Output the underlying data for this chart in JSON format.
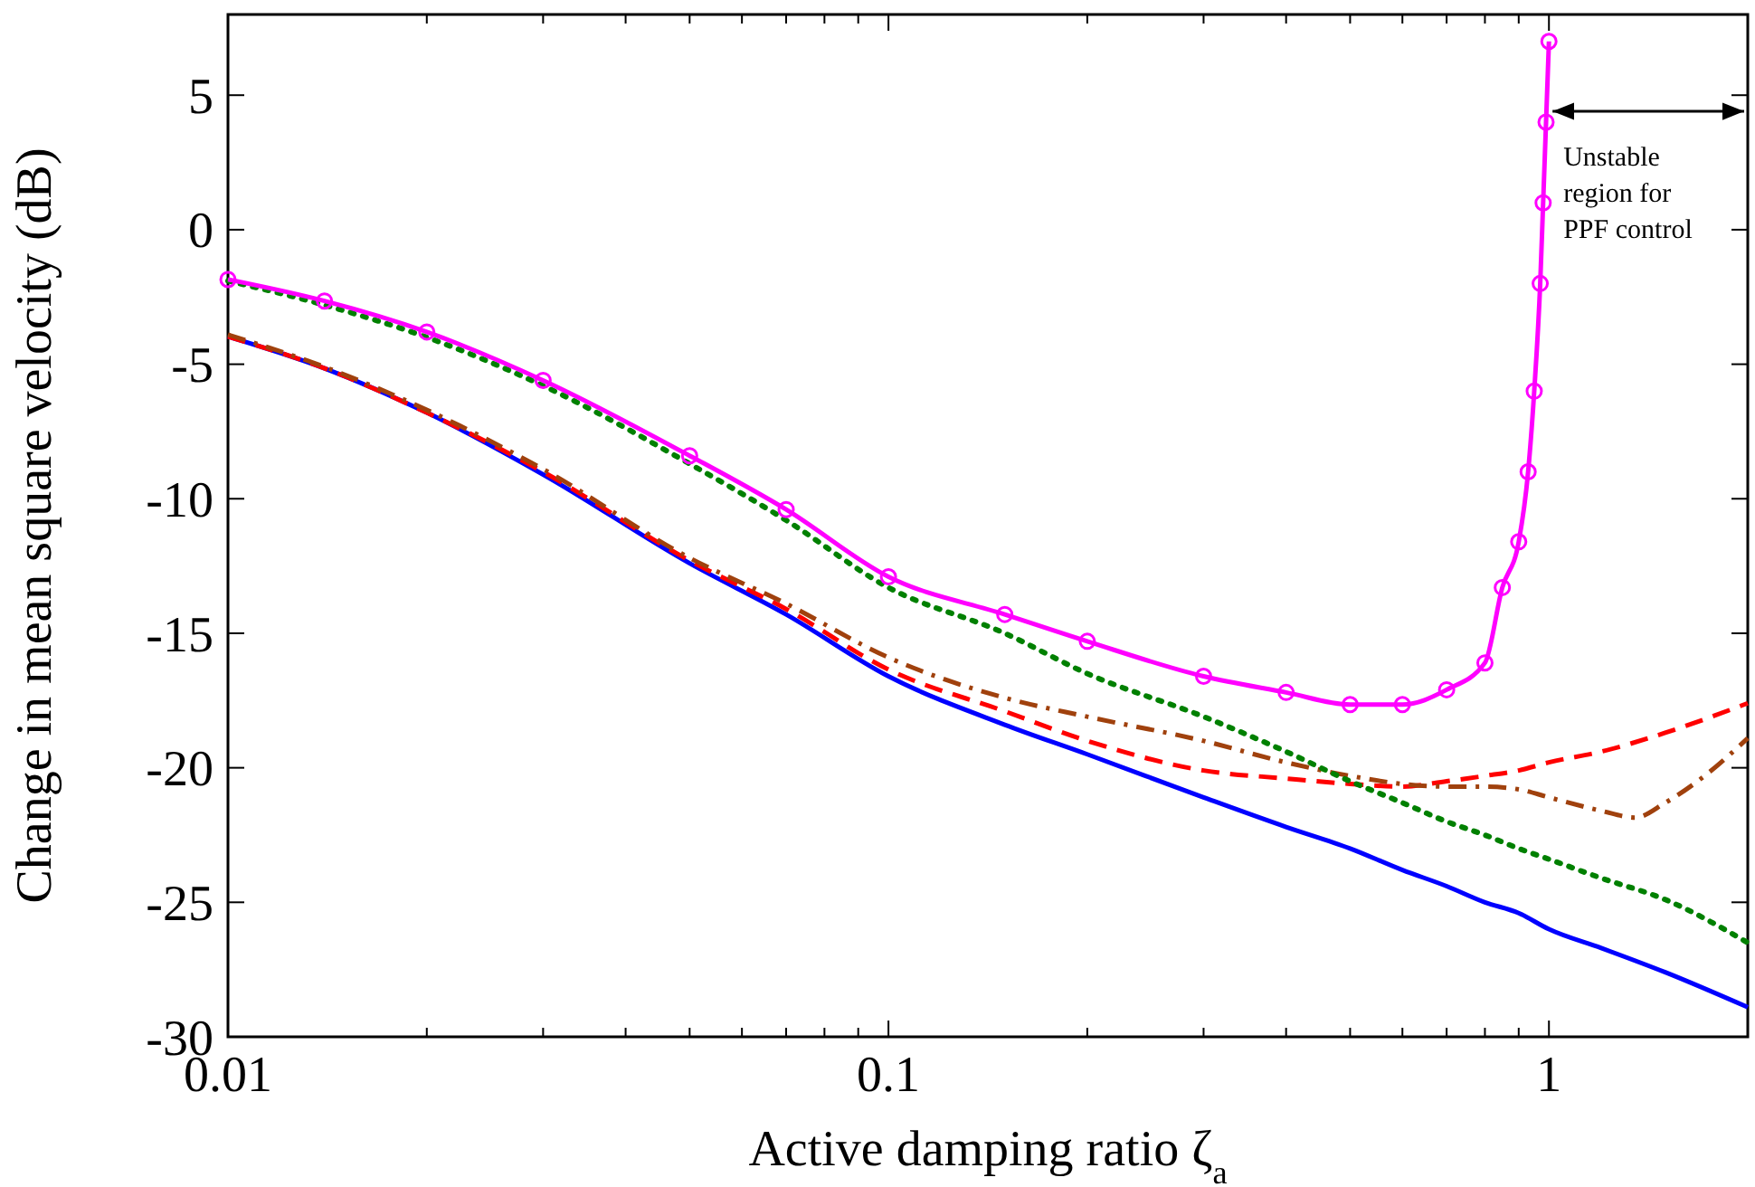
{
  "chart_data": {
    "type": "line",
    "xlabel": "Active damping ratio ζ$_{a}$",
    "ylabel": "Change in mean square velocity (dB)",
    "log": "x",
    "grid": false,
    "xlim": [
      0.01,
      2
    ],
    "ylim": [
      -30,
      8
    ],
    "xticks": [
      0.01,
      {
        "value": 0.02,
        "label": null
      },
      {
        "value": 0.03,
        "label": null
      },
      {
        "value": 0.04,
        "label": null
      },
      {
        "value": 0.05,
        "label": null
      },
      {
        "value": 0.06,
        "label": null
      },
      {
        "value": 0.07,
        "label": null
      },
      {
        "value": 0.08,
        "label": null
      },
      {
        "value": 0.09,
        "label": null
      },
      0.1,
      {
        "value": 0.2,
        "label": null
      },
      {
        "value": 0.3,
        "label": null
      },
      {
        "value": 0.4,
        "label": null
      },
      {
        "value": 0.5,
        "label": null
      },
      {
        "value": 0.6,
        "label": null
      },
      {
        "value": 0.7,
        "label": null
      },
      {
        "value": 0.8,
        "label": null
      },
      {
        "value": 0.9,
        "label": null
      },
      1
    ],
    "yticks": [
      -30,
      -25,
      -20,
      -15,
      -10,
      -5,
      0,
      5
    ],
    "x": [
      0.01,
      0.014,
      0.02,
      0.03,
      0.05,
      0.07,
      0.1,
      0.15,
      0.2,
      0.3,
      0.4,
      0.5,
      0.6,
      0.7,
      0.8,
      0.9,
      1,
      1.2,
      1.5,
      2
    ],
    "series": [
      {
        "color": "#0000ff",
        "line_style": "solid",
        "marker": "none",
        "values": [
          -3.97,
          -5.15,
          -6.8,
          -9.1,
          -12.4,
          -14.3,
          -16.6,
          -18.4,
          -19.5,
          -21.1,
          -22.2,
          -23.0,
          -23.8,
          -24.4,
          -25.0,
          -25.4,
          -26.0,
          -26.7,
          -27.6,
          -28.9
        ]
      },
      {
        "color": "#ff0000",
        "line_style": "dashed",
        "marker": "none",
        "values": [
          -3.97,
          -5.15,
          -6.8,
          -9.0,
          -12.3,
          -14.1,
          -16.35,
          -17.9,
          -19.0,
          -20.1,
          -20.4,
          -20.6,
          -20.7,
          -20.5,
          -20.3,
          -20.1,
          -19.8,
          -19.4,
          -18.7,
          -17.6
        ]
      },
      {
        "color": "#a0410d",
        "line_style": "dashdot",
        "marker": "none",
        "x": [
          0.01,
          0.014,
          0.02,
          0.03,
          0.05,
          0.07,
          0.1,
          0.15,
          0.2,
          0.3,
          0.4,
          0.5,
          0.6,
          0.7,
          0.8,
          0.9,
          1,
          1.2,
          1.35,
          1.5,
          1.7,
          2
        ],
        "values": [
          -3.9,
          -5.1,
          -6.7,
          -8.9,
          -12.2,
          -13.9,
          -15.9,
          -17.4,
          -18.1,
          -19.0,
          -19.8,
          -20.3,
          -20.6,
          -20.7,
          -20.7,
          -20.8,
          -21.1,
          -21.6,
          -21.85,
          -21.3,
          -20.4,
          -18.9
        ]
      },
      {
        "color": "#008000",
        "line_style": "dotted",
        "marker": "none",
        "values": [
          -1.9,
          -2.8,
          -4.0,
          -5.8,
          -8.7,
          -10.8,
          -13.3,
          -15.0,
          -16.5,
          -18.1,
          -19.4,
          -20.5,
          -21.3,
          -22.0,
          -22.5,
          -23.0,
          -23.4,
          -24.1,
          -24.9,
          -26.5
        ]
      },
      {
        "color": "#ff00ff",
        "line_style": "solid",
        "marker": "circle",
        "x": [
          0.01,
          0.014,
          0.02,
          0.03,
          0.05,
          0.07,
          0.1,
          0.15,
          0.2,
          0.3,
          0.4,
          0.5,
          0.6,
          0.7,
          0.8,
          0.85,
          0.9,
          0.93,
          0.95,
          0.97,
          0.98,
          0.99,
          1
        ],
        "values": [
          -1.85,
          -2.65,
          -3.8,
          -5.6,
          -8.4,
          -10.4,
          -12.9,
          -14.3,
          -15.3,
          -16.6,
          -17.2,
          -17.65,
          -17.65,
          -17.1,
          -16.1,
          -13.3,
          -11.6,
          -9,
          -6,
          -2,
          1,
          4,
          7.0
        ]
      }
    ],
    "annotations": [
      {
        "text": "Unstable region for PPF control",
        "x": 1,
        "y": 4.4
      }
    ]
  }
}
